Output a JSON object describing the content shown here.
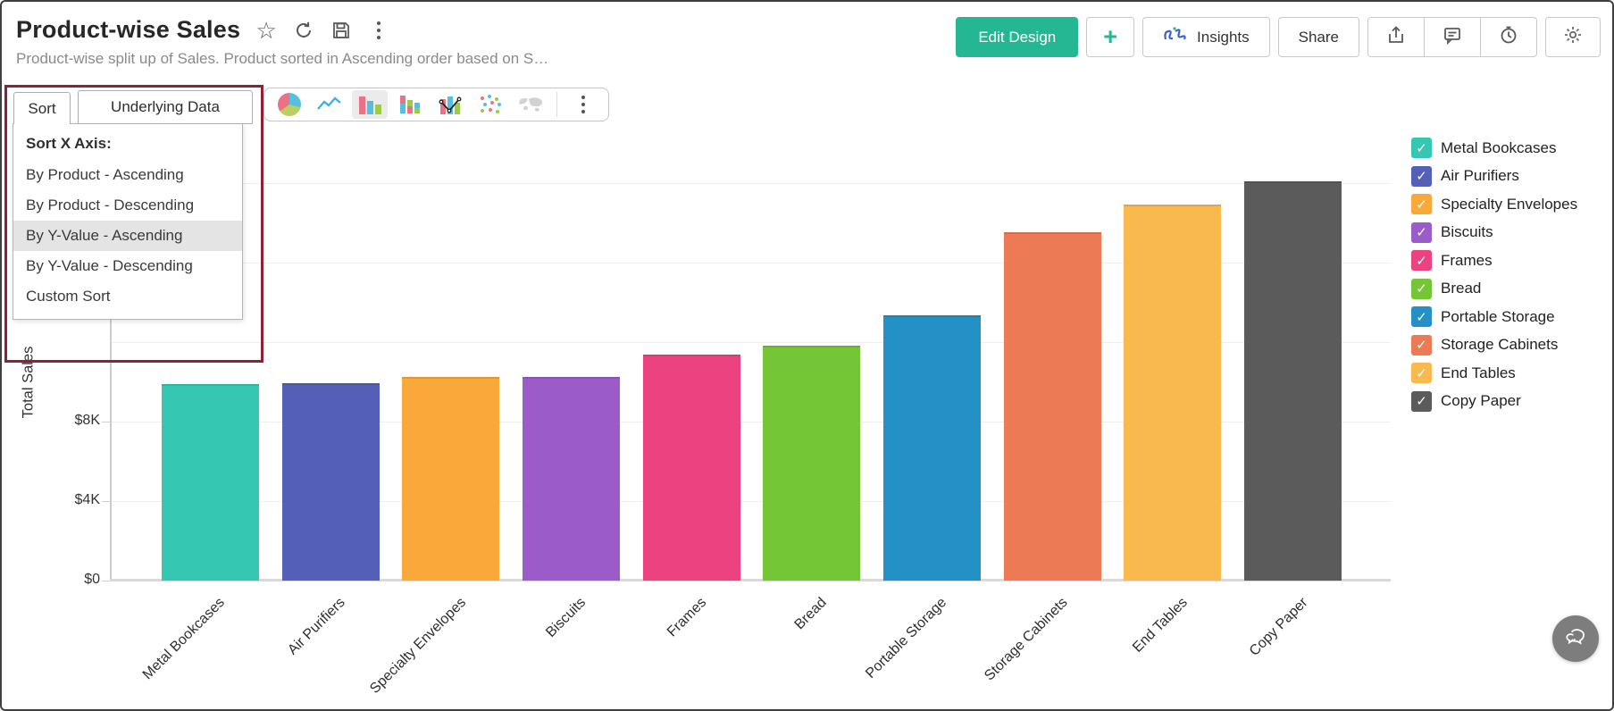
{
  "colors": {
    "accent_green": "#25b693",
    "annotation_red": "#8d2232"
  },
  "glyphs": {
    "star": "☆",
    "check": "✓"
  },
  "header": {
    "title": "Product-wise Sales",
    "subtitle": "Product-wise split up of Sales. Product sorted in Ascending order based on S…",
    "buttons": {
      "edit_design": "Edit Design",
      "add": "+",
      "insights": "Insights",
      "share": "Share"
    }
  },
  "toolbar": {
    "tabs": [
      {
        "label": "Sort",
        "active": true
      },
      {
        "label": "Underlying Data",
        "active": false
      }
    ],
    "chart_types": [
      "pie",
      "line",
      "bar",
      "stacked-bar",
      "combo",
      "scatter",
      "map"
    ],
    "selected_chart_type": "bar"
  },
  "sort_menu": {
    "header": "Sort X Axis:",
    "items": [
      {
        "label": "By Product - Ascending",
        "highlighted": false
      },
      {
        "label": "By Product - Descending",
        "highlighted": false
      },
      {
        "label": "By Y-Value - Ascending",
        "highlighted": true
      },
      {
        "label": "By Y-Value - Descending",
        "highlighted": false
      },
      {
        "label": "Custom Sort",
        "highlighted": false
      }
    ]
  },
  "chart_data": {
    "type": "bar",
    "title": "",
    "xlabel": "",
    "ylabel": "Total Sales",
    "categories": [
      "Metal Bookcases",
      "Air Purifiers",
      "Specialty Envelopes",
      "Biscuits",
      "Frames",
      "Bread",
      "Portable Storage",
      "Storage Cabinets",
      "End Tables",
      "Copy Paper"
    ],
    "values": [
      9900,
      9950,
      10250,
      10250,
      11350,
      11800,
      13350,
      17550,
      18900,
      20100
    ],
    "colors": [
      "#35c7b1",
      "#5460b8",
      "#f9a93a",
      "#9b5bc9",
      "#ec4380",
      "#74c636",
      "#2391c5",
      "#ec7a55",
      "#f8b94e",
      "#5b5b5b"
    ],
    "ylim": [
      0,
      21000
    ],
    "grid": true,
    "grid_values": [
      4000,
      8000,
      12000,
      16000,
      20000
    ],
    "yticks_visible": [
      {
        "label": "$8K",
        "value": 8000
      },
      {
        "label": "$4K",
        "value": 4000
      },
      {
        "label": "$0",
        "value": 0
      }
    ],
    "legend_position": "right",
    "legend_checked": true
  }
}
